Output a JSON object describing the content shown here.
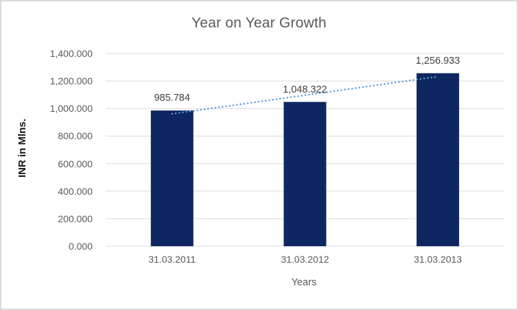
{
  "chart_data": {
    "type": "bar",
    "title": "Year on Year Growth",
    "xlabel": "Years",
    "ylabel": "INR in Mlns.",
    "categories": [
      "31.03.2011",
      "31.03.2012",
      "31.03.2013"
    ],
    "values": [
      985.784,
      1048.322,
      1256.933
    ],
    "data_labels": [
      "985.784",
      "1,048.322",
      "1,256.933"
    ],
    "ylim": [
      0,
      1400
    ],
    "ytick_step": 200,
    "ytick_labels": [
      "0.000",
      "200.000",
      "400.000",
      "600.000",
      "800.000",
      "1,000.000",
      "1,200.000",
      "1,400.000"
    ],
    "grid": true,
    "legend": "none",
    "trendline": {
      "type": "linear",
      "style": "dotted"
    },
    "colors": {
      "bar": "#0E2760",
      "trendline": "#5B9BD5",
      "gridline": "#D9D9D9",
      "axis_text": "#595959",
      "data_label_text": "#404040",
      "title_text": "#595959",
      "y_axis_title_text": "#141414",
      "chart_border": "#D9D9D9",
      "background": "#FFFFFF"
    }
  }
}
